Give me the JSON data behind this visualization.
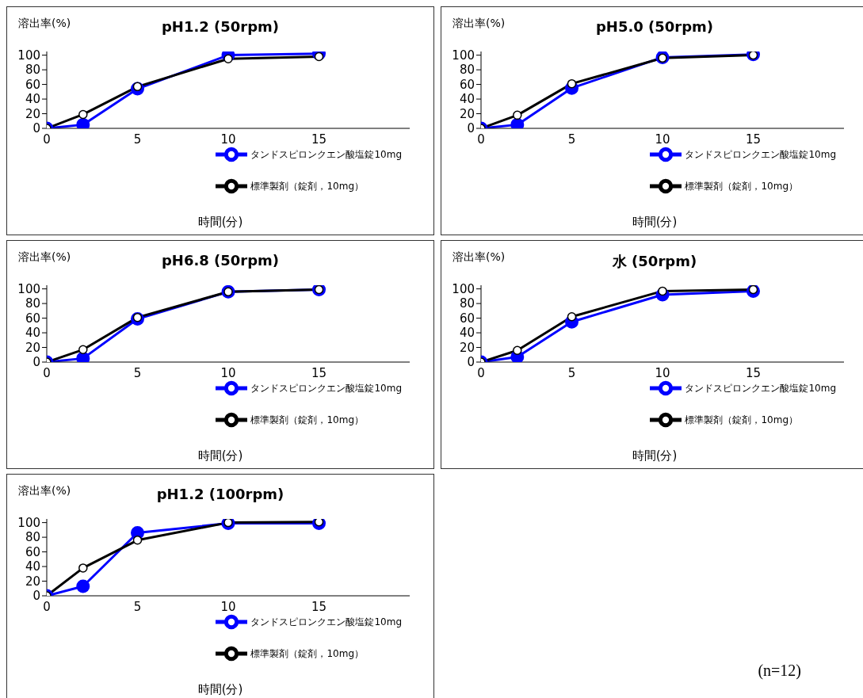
{
  "chart_data": [
    {
      "type": "line",
      "title": "pH1.2 (50rpm)",
      "ylabel": "溶出率(%)",
      "xlabel": "時間(分)",
      "x": [
        0,
        2,
        5,
        10,
        15
      ],
      "xlim": [
        0,
        20
      ],
      "xticks": [
        0,
        5,
        10,
        15
      ],
      "ylim": [
        0,
        105
      ],
      "yticks": [
        0,
        20,
        40,
        60,
        80,
        100
      ],
      "marker": "circle",
      "legend": "right",
      "grid": false,
      "series": [
        {
          "name": "タンドスピロンクエン酸塩錠10mg",
          "color": "#0000ff",
          "values": [
            0,
            5,
            54,
            100,
            102
          ]
        },
        {
          "name": "標準製剤（錠剤，10mg）",
          "color": "#000000",
          "values": [
            0,
            19,
            57,
            95,
            98
          ]
        }
      ]
    },
    {
      "type": "line",
      "title": "pH5.0 (50rpm)",
      "ylabel": "溶出率(%)",
      "xlabel": "時間(分)",
      "x": [
        0,
        2,
        5,
        10,
        15
      ],
      "xlim": [
        0,
        20
      ],
      "xticks": [
        0,
        5,
        10,
        15
      ],
      "ylim": [
        0,
        105
      ],
      "yticks": [
        0,
        20,
        40,
        60,
        80,
        100
      ],
      "marker": "circle",
      "legend": "right",
      "grid": false,
      "series": [
        {
          "name": "タンドスピロンクエン酸塩錠10mg",
          "color": "#0000ff",
          "values": [
            0,
            5,
            55,
            97,
            101
          ]
        },
        {
          "name": "標準製剤（錠剤，10mg）",
          "color": "#000000",
          "values": [
            0,
            18,
            61,
            96,
            100
          ]
        }
      ]
    },
    {
      "type": "line",
      "title": "pH6.8 (50rpm)",
      "ylabel": "溶出率(%)",
      "xlabel": "時間(分)",
      "x": [
        0,
        2,
        5,
        10,
        15
      ],
      "xlim": [
        0,
        20
      ],
      "xticks": [
        0,
        5,
        10,
        15
      ],
      "ylim": [
        0,
        105
      ],
      "yticks": [
        0,
        20,
        40,
        60,
        80,
        100
      ],
      "marker": "circle",
      "legend": "right",
      "grid": false,
      "series": [
        {
          "name": "タンドスピロンクエン酸塩錠10mg",
          "color": "#0000ff",
          "values": [
            0,
            5,
            59,
            96,
            99
          ]
        },
        {
          "name": "標準製剤（錠剤，10mg）",
          "color": "#000000",
          "values": [
            0,
            17,
            61,
            96,
            99
          ]
        }
      ]
    },
    {
      "type": "line",
      "title": "水 (50rpm)",
      "ylabel": "溶出率(%)",
      "xlabel": "時間(分)",
      "x": [
        0,
        2,
        5,
        10,
        15
      ],
      "xlim": [
        0,
        20
      ],
      "xticks": [
        0,
        5,
        10,
        15
      ],
      "ylim": [
        0,
        105
      ],
      "yticks": [
        0,
        20,
        40,
        60,
        80,
        100
      ],
      "marker": "circle",
      "legend": "right",
      "grid": false,
      "series": [
        {
          "name": "タンドスピロンクエン酸塩錠10mg",
          "color": "#0000ff",
          "values": [
            0,
            7,
            55,
            92,
            97
          ]
        },
        {
          "name": "標準製剤（錠剤，10mg）",
          "color": "#000000",
          "values": [
            0,
            16,
            62,
            97,
            99
          ]
        }
      ]
    },
    {
      "type": "line",
      "title": "pH1.2 (100rpm)",
      "ylabel": "溶出率(%)",
      "xlabel": "時間(分)",
      "x": [
        0,
        2,
        5,
        10,
        15
      ],
      "xlim": [
        0,
        20
      ],
      "xticks": [
        0,
        5,
        10,
        15
      ],
      "ylim": [
        0,
        105
      ],
      "yticks": [
        0,
        20,
        40,
        60,
        80,
        100
      ],
      "marker": "circle",
      "legend": "right",
      "grid": false,
      "annotations": [
        "(n=12)"
      ],
      "series": [
        {
          "name": "タンドスピロンクエン酸塩錠10mg",
          "color": "#0000ff",
          "values": [
            0,
            13,
            86,
            99,
            99
          ]
        },
        {
          "name": "標準製剤（錠剤，10mg）",
          "color": "#000000",
          "values": [
            0,
            38,
            76,
            100,
            101
          ]
        }
      ]
    }
  ]
}
